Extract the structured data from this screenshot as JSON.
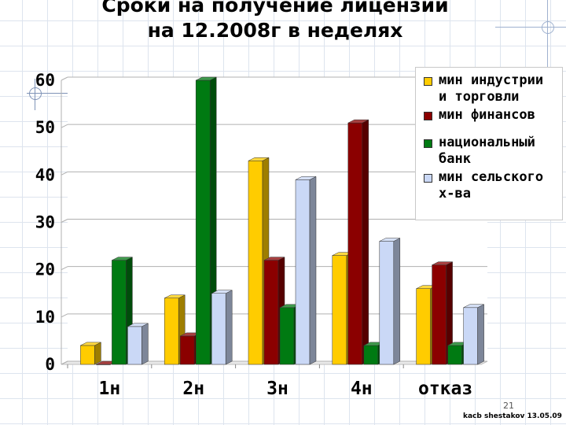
{
  "title": {
    "line1": "Сроки на получение лицензий",
    "line2": "на 12.2008г  в неделях"
  },
  "chart_data": {
    "type": "bar",
    "categories": [
      "1н",
      "2н",
      "3н",
      "4н",
      "отказ"
    ],
    "series": [
      {
        "name": "мин индустрии\nи торговли",
        "color": "#ffcc00",
        "values": [
          4,
          14,
          43,
          23,
          16
        ]
      },
      {
        "name": "мин финансов",
        "color": "#8b0000",
        "values": [
          0,
          6,
          22,
          51,
          21
        ]
      },
      {
        "name": "национальный\nбанк",
        "color": "#007a12",
        "values": [
          22,
          60,
          12,
          4,
          4
        ]
      },
      {
        "name": "мин сельского\nх-ва",
        "color": "#cad8f6",
        "values": [
          8,
          15,
          39,
          26,
          12
        ]
      }
    ],
    "ylim": [
      0,
      60
    ],
    "yticks": [
      0,
      10,
      20,
      30,
      40,
      50,
      60
    ],
    "grid": true,
    "legend_position": "top-right",
    "style": "3d-clustered-bar"
  },
  "footer": {
    "page_number": "21",
    "credit": "kacb shestakov 13.05.09"
  }
}
